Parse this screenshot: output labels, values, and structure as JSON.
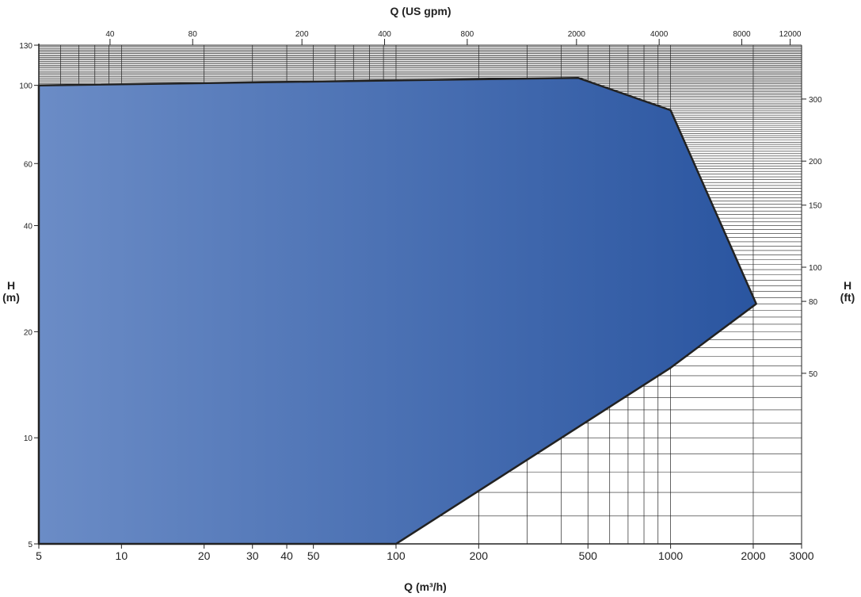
{
  "chart_data": {
    "type": "area",
    "title": "",
    "xlabel": "Q (m³/h)",
    "x2label": "Q (US gpm)",
    "ylabel": "H (m)",
    "ylabel_lines": [
      "H",
      "(m)"
    ],
    "y2label": "H (ft)",
    "y2label_lines": [
      "H",
      "(ft)"
    ],
    "x_scale": "log",
    "y_scale": "log",
    "xlim": [
      5,
      3000
    ],
    "ylim": [
      5,
      130
    ],
    "grid": true,
    "x_ticks": [
      5,
      10,
      20,
      30,
      40,
      50,
      100,
      200,
      500,
      1000,
      2000,
      3000
    ],
    "x_tick_labels": [
      "5",
      "10",
      "20",
      "30",
      "40",
      "50",
      "100",
      "200",
      "500",
      "1000",
      "2000",
      "3000"
    ],
    "x2_ticks": [
      40,
      80,
      200,
      400,
      800,
      2000,
      4000,
      8000,
      12000
    ],
    "x2_tick_labels": [
      "40",
      "80",
      "200",
      "400",
      "800",
      "2000",
      "4000",
      "8000",
      "12000"
    ],
    "y_ticks": [
      5,
      10,
      20,
      40,
      60,
      100,
      130
    ],
    "y_tick_labels": [
      "5",
      "10",
      "20",
      "40",
      "60",
      "100",
      "130"
    ],
    "y2_ticks": [
      50,
      80,
      100,
      150,
      200,
      300
    ],
    "y2_tick_labels": [
      "50",
      "80",
      "100",
      "150",
      "200",
      "300"
    ],
    "series": [
      {
        "x": [
          5,
          460,
          1000,
          2050,
          1000,
          100,
          5
        ],
        "y": [
          100,
          105,
          85,
          24,
          15.8,
          5,
          5
        ]
      }
    ],
    "colors": {
      "fill_start": "#6b8cc6",
      "fill_end": "#2a55a0",
      "outline": "#222222",
      "grid": "#222222",
      "text": "#222222"
    }
  }
}
